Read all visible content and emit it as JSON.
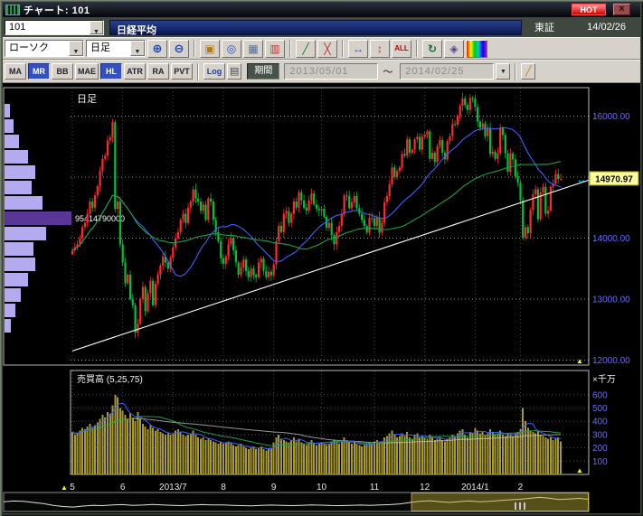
{
  "window": {
    "title": "チャート: 101",
    "hot": "HOT",
    "close": "×"
  },
  "header": {
    "code": "101",
    "name": "日経平均",
    "exchange": "東証",
    "date": "14/02/26"
  },
  "toolbar": {
    "chart_type": "ローソク",
    "timeframe": "日足",
    "icons": [
      {
        "name": "zoom-in",
        "glyph": "⊕",
        "color": "#1040c0",
        "size": 13
      },
      {
        "name": "zoom-out",
        "glyph": "⊖",
        "color": "#1040c0",
        "size": 13
      },
      {
        "type": "sep"
      },
      {
        "name": "memo",
        "glyph": "▣",
        "color": "#b07818",
        "size": 12
      },
      {
        "name": "target",
        "glyph": "◎",
        "color": "#2050c0",
        "size": 12
      },
      {
        "name": "grid",
        "glyph": "▦",
        "color": "#507090",
        "size": 12
      },
      {
        "name": "candle-style",
        "glyph": "▥",
        "color": "#c03030",
        "size": 12
      },
      {
        "type": "sep"
      },
      {
        "name": "draw-line",
        "glyph": "╱",
        "color": "#108030",
        "size": 12
      },
      {
        "name": "erase-line",
        "glyph": "╳",
        "color": "#c03030",
        "size": 12
      },
      {
        "type": "sep"
      },
      {
        "name": "fit-horizontal",
        "glyph": "↔",
        "color": "#2050c0",
        "size": 12
      },
      {
        "name": "fit-vertical",
        "glyph": "↕",
        "color": "#c03030",
        "size": 12
      },
      {
        "name": "all",
        "glyph": "ALL",
        "color": "#c00000",
        "size": 8
      },
      {
        "type": "sep"
      },
      {
        "name": "refresh",
        "glyph": "↻",
        "color": "#107030",
        "size": 12
      },
      {
        "name": "settings",
        "glyph": "◈",
        "color": "#604090",
        "size": 12
      },
      {
        "name": "gradient",
        "glyph": "",
        "gradient": true
      }
    ]
  },
  "toolbar2": {
    "indicators": [
      {
        "label": "MA",
        "active": false
      },
      {
        "label": "MR",
        "active": true
      },
      {
        "label": "BB",
        "active": false
      },
      {
        "label": "MAE",
        "active": false
      },
      {
        "label": "HL",
        "active": true
      },
      {
        "label": "ATR",
        "active": false
      },
      {
        "label": "RA",
        "active": false
      },
      {
        "label": "PVT",
        "active": false
      }
    ],
    "log": "Log",
    "mode_glyph": "▤",
    "period_label": "期間",
    "date_from": "2013/05/01",
    "tilde": "～",
    "date_to": "2014/02/25",
    "dropdown_glyph": "▼",
    "edit_glyph": "╱"
  },
  "chart": {
    "pane_label": "日足",
    "volume_title": "売買高 (5,25,75)",
    "volume_unit": "×千万",
    "current_price": "14970.97"
  },
  "colors": {
    "up": "#ff2a2a",
    "down": "#00c040",
    "ma_mid": "#4060ff",
    "ma_long": "#20a040",
    "axis_text": "#6a6aff",
    "grid": "#ffffff",
    "volume_bar": "#a89a32",
    "profile_bar": "#b4aaf0",
    "profile_highlight": "#5a3696",
    "price_label_bg": "#ffffa0",
    "trendline": "#ffffff",
    "marker": "#00e0ff"
  },
  "chart_data": {
    "type": "candlestick",
    "symbol": "日経平均",
    "timeframe": "日足",
    "price_axis": {
      "min": 11800,
      "max": 16470,
      "ticks": [
        16000,
        15000,
        14000,
        13000,
        12000
      ]
    },
    "volume_axis": {
      "min": 0,
      "max": 650,
      "ticks": [
        600,
        500,
        400,
        300,
        200,
        100
      ],
      "unit": "×千万"
    },
    "month_starts": [
      {
        "label": "5",
        "index": 0
      },
      {
        "label": "6",
        "index": 20
      },
      {
        "label": "2013/7",
        "index": 40
      },
      {
        "label": "8",
        "index": 60
      },
      {
        "label": "9",
        "index": 80
      },
      {
        "label": "10",
        "index": 99
      },
      {
        "label": "11",
        "index": 120
      },
      {
        "label": "12",
        "index": 140
      },
      {
        "label": "2014/1",
        "index": 160
      },
      {
        "label": "2",
        "index": 178
      }
    ],
    "ma_periods": [
      25,
      75
    ],
    "volume_ma_periods": [
      5,
      25,
      75
    ],
    "trendline": {
      "from_price": 12150,
      "to_price": 14950
    },
    "volume_profile": {
      "values": [
        6,
        10,
        16,
        26,
        34,
        30,
        42,
        74,
        46,
        32,
        34,
        26,
        18,
        12,
        7
      ],
      "highlight_index": 7,
      "highlight_label": "95414790000"
    },
    "closes": [
      13800,
      13850,
      13900,
      14000,
      14180,
      14250,
      14400,
      14600,
      14500,
      14700,
      14850,
      15100,
      15300,
      15350,
      15600,
      15650,
      15900,
      14480,
      14600,
      13900,
      13600,
      13260,
      13400,
      13000,
      12900,
      12450,
      12600,
      13000,
      13200,
      12800,
      13100,
      13300,
      12900,
      13250,
      13400,
      13550,
      13700,
      13600,
      13500,
      13677,
      13850,
      14000,
      14100,
      14300,
      14400,
      14250,
      14500,
      14600,
      14800,
      14650,
      14600,
      14450,
      14550,
      14300,
      14650,
      14600,
      14300,
      14100,
      13950,
      13668,
      13580,
      13700,
      13900,
      14000,
      13800,
      13600,
      13400,
      13520,
      13650,
      13460,
      13360,
      13500,
      13400,
      13360,
      13600,
      13660,
      13460,
      13360,
      13450,
      13389,
      13570,
      13950,
      14200,
      14100,
      14400,
      14440,
      14250,
      14400,
      14600,
      14500,
      14750,
      14620,
      14500,
      14450,
      14620,
      14730,
      14550,
      14480,
      14456,
      14480,
      14350,
      14170,
      14250,
      14050,
      13900,
      14100,
      14200,
      14400,
      14700,
      14690,
      14490,
      14590,
      14690,
      14490,
      14400,
      14300,
      14200,
      14090,
      14330,
      14328,
      14200,
      14340,
      14090,
      14250,
      14590,
      14690,
      14880,
      15160,
      15000,
      15100,
      15160,
      15380,
      15350,
      15620,
      15400,
      15450,
      15620,
      15660,
      15450,
      15662,
      15700,
      15750,
      15300,
      15400,
      15250,
      15510,
      15610,
      15400,
      15290,
      15590,
      15670,
      15870,
      15860,
      16000,
      16170,
      16290,
      16180,
      16100,
      16300,
      16291,
      16150,
      15910,
      15810,
      15880,
      15670,
      15810,
      15380,
      15420,
      15300,
      15390,
      15800,
      15690,
      15390,
      15090,
      15390,
      15290,
      15010,
      14910,
      14620,
      14010,
      14180,
      14080,
      14460,
      14720,
      14800,
      14310,
      14750,
      14840,
      14400,
      14450,
      14840,
      14890,
      15050,
      14970,
      14970.97
    ],
    "volumes": [
      320,
      300,
      310,
      330,
      350,
      340,
      360,
      380,
      350,
      370,
      390,
      420,
      450,
      430,
      470,
      460,
      520,
      600,
      580,
      500,
      480,
      450,
      420,
      460,
      430,
      400,
      470,
      420,
      380,
      360,
      340,
      370,
      350,
      330,
      340,
      320,
      310,
      300,
      310,
      300,
      310,
      330,
      340,
      320,
      300,
      290,
      300,
      310,
      330,
      300,
      280,
      270,
      280,
      260,
      270,
      260,
      250,
      240,
      230,
      240,
      230,
      240,
      250,
      240,
      220,
      210,
      220,
      230,
      210,
      200,
      190,
      200,
      210,
      190,
      200,
      210,
      190,
      180,
      190,
      200,
      240,
      280,
      300,
      270,
      260,
      250,
      240,
      260,
      280,
      250,
      270,
      240,
      230,
      220,
      240,
      260,
      230,
      220,
      230,
      240,
      230,
      220,
      230,
      250,
      260,
      240,
      230,
      250,
      280,
      260,
      240,
      230,
      250,
      230,
      220,
      210,
      220,
      230,
      240,
      230,
      250,
      260,
      240,
      250,
      280,
      290,
      310,
      330,
      300,
      280,
      290,
      310,
      290,
      320,
      280,
      270,
      300,
      310,
      280,
      290,
      280,
      270,
      300,
      280,
      260,
      270,
      280,
      260,
      250,
      270,
      280,
      300,
      290,
      310,
      330,
      340,
      300,
      280,
      320,
      310,
      350,
      330,
      310,
      320,
      300,
      310,
      340,
      320,
      300,
      310,
      330,
      300,
      290,
      310,
      300,
      290,
      310,
      320,
      340,
      500,
      400,
      350,
      330,
      320,
      310,
      330,
      300,
      290,
      280,
      270,
      280,
      260,
      270,
      280,
      250
    ],
    "overview": [
      0.55,
      0.6,
      0.58,
      0.5,
      0.42,
      0.3,
      0.22,
      0.18,
      0.25,
      0.3,
      0.28,
      0.33,
      0.35,
      0.3,
      0.32,
      0.36,
      0.33,
      0.3,
      0.28,
      0.32,
      0.35,
      0.33,
      0.33,
      0.3,
      0.28,
      0.26,
      0.3,
      0.32,
      0.3,
      0.28,
      0.3,
      0.33,
      0.31,
      0.29,
      0.28,
      0.3,
      0.32,
      0.3,
      0.33,
      0.35,
      0.4,
      0.5,
      0.58,
      0.62,
      0.55,
      0.5,
      0.56,
      0.6,
      0.55,
      0.58,
      0.63,
      0.68,
      0.72,
      0.78,
      0.85,
      0.8,
      0.7,
      0.74,
      0.78,
      0.72
    ]
  }
}
